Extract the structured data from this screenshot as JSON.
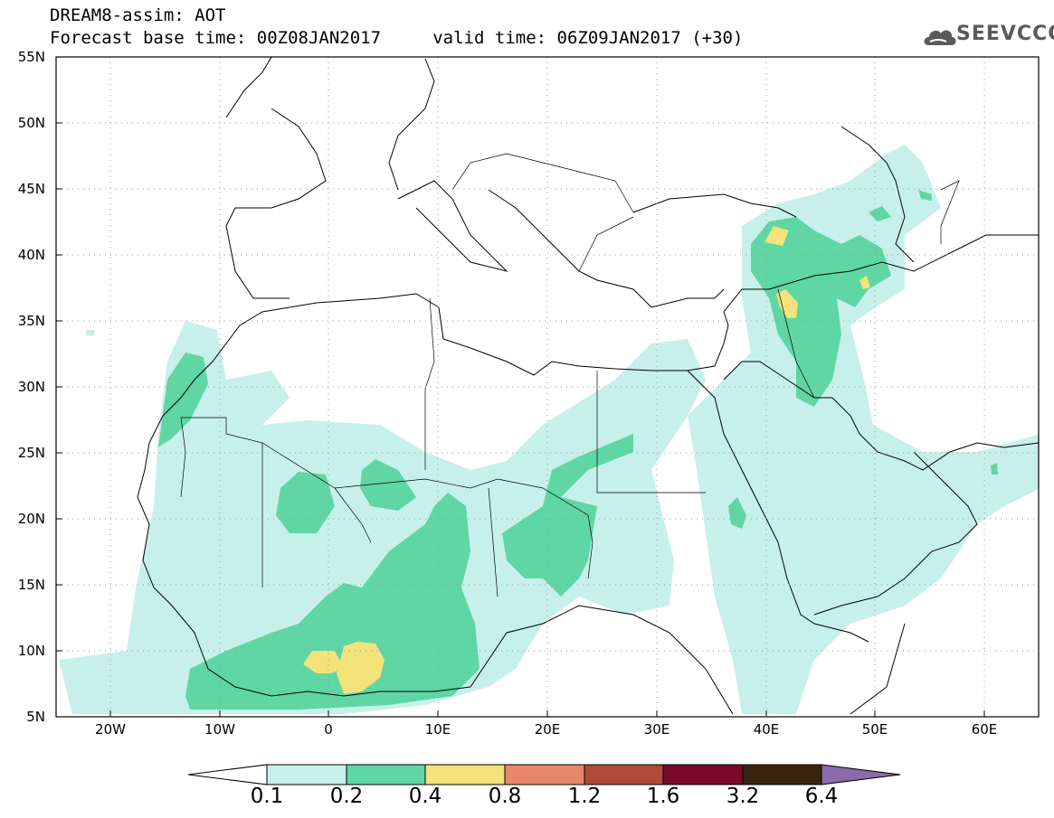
{
  "title": {
    "line1": "DREAM8-assim: AOT",
    "line2": "Forecast base time: 00Z08JAN2017     valid time: 06Z09JAN2017 (+30)"
  },
  "logo": {
    "text": "SEEVCCC",
    "icon": "cloud-icon"
  },
  "map": {
    "projection": "lat-lon",
    "lon_range": [
      -25,
      65
    ],
    "lat_range": [
      5,
      55
    ],
    "grid": "dotted",
    "lat_ticks": [
      "55N",
      "50N",
      "45N",
      "40N",
      "35N",
      "30N",
      "25N",
      "20N",
      "15N",
      "10N",
      "5N"
    ],
    "lon_ticks": [
      "20W",
      "10W",
      "0",
      "10E",
      "20E",
      "30E",
      "40E",
      "50E",
      "60E"
    ]
  },
  "colorbar": {
    "labels": [
      "0.1",
      "0.2",
      "0.4",
      "0.8",
      "1.2",
      "1.6",
      "3.2",
      "6.4"
    ],
    "colors": [
      "#c8f0ea",
      "#5fd6a4",
      "#f4e27a",
      "#e8886a",
      "#b04a3c",
      "#7a0a28",
      "#3a2410",
      "#8a6aa8"
    ],
    "below_color": "#ffffff"
  }
}
